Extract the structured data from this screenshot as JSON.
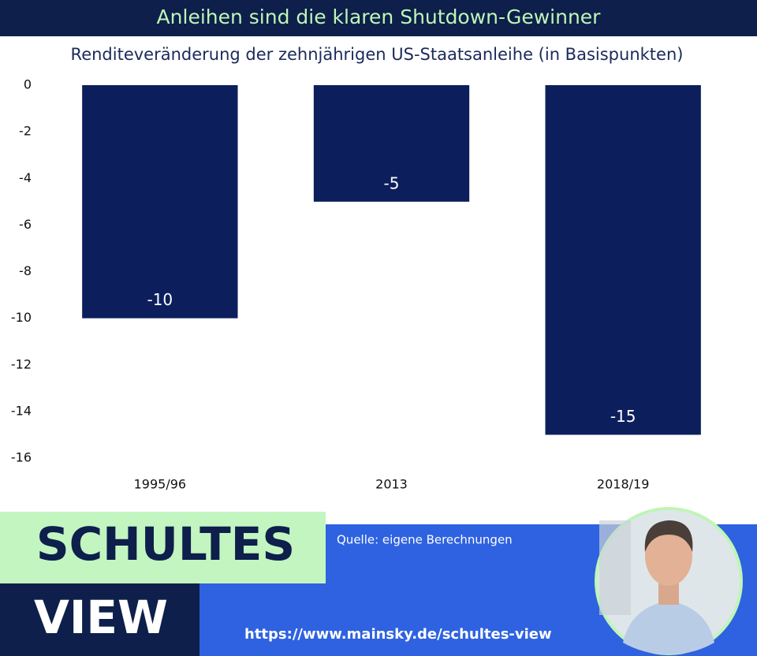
{
  "chart_data": {
    "type": "bar",
    "title": "Anleihen sind die klaren Shutdown-Gewinner",
    "subtitle": "Renditeveränderung der zehnjährigen US-Staatsanleihe (in Basispunkten)",
    "categories": [
      "1995/96",
      "2013",
      "2018/19"
    ],
    "values": [
      -10,
      -5,
      -15
    ],
    "color": "#0c1f5c",
    "ylim": [
      -16,
      0
    ],
    "yticks": [
      0,
      -2,
      -4,
      -6,
      -8,
      -10,
      -12,
      -14,
      -16
    ],
    "grid": false,
    "source": "Quelle: eigene Berechnungen"
  },
  "branding": {
    "line1": "SCHULTES",
    "line2": "VIEW",
    "url": "https://www.mainsky.de/schultes-view"
  }
}
